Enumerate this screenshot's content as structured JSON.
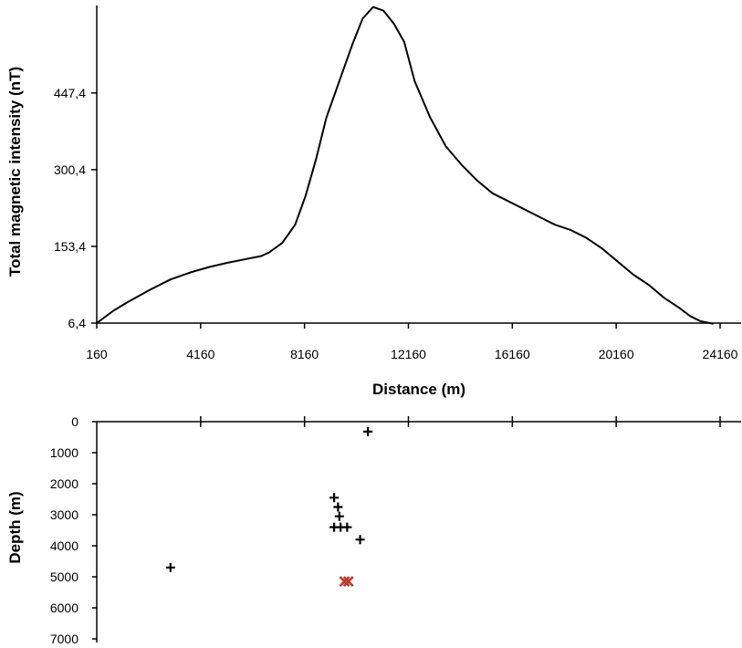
{
  "chart_data": [
    {
      "type": "line",
      "title": "",
      "xlabel": "Distance (m)",
      "ylabel": "Total magnetic intensity (nT)",
      "xlim": [
        160,
        24160
      ],
      "ylim": [
        6.4,
        615
      ],
      "x_ticks": [
        "160",
        "4160",
        "8160",
        "12160",
        "16160",
        "20160",
        "24160"
      ],
      "y_ticks": [
        "6,4",
        "153,4",
        "300,4",
        "447,4"
      ],
      "grid": false,
      "series": [
        {
          "x": [
            160,
            800,
            1300,
            2200,
            3000,
            3800,
            4500,
            5200,
            6000,
            6500,
            6800,
            7300,
            7800,
            8200,
            8600,
            9000,
            9500,
            10000,
            10400,
            10800,
            11200,
            11600,
            12000,
            12400,
            13000,
            13600,
            14200,
            14800,
            15400,
            16000,
            16600,
            17200,
            17800,
            18400,
            19000,
            19600,
            20200,
            20800,
            21400,
            22000,
            22600,
            23000,
            23400,
            23900
          ],
          "values": [
            6.4,
            30,
            45,
            70,
            90,
            104,
            114,
            122,
            130,
            135,
            142,
            160,
            195,
            250,
            320,
            400,
            470,
            540,
            590,
            612,
            605,
            580,
            545,
            470,
            400,
            345,
            310,
            280,
            255,
            240,
            225,
            210,
            195,
            185,
            170,
            150,
            125,
            100,
            80,
            55,
            35,
            20,
            10,
            5
          ]
        }
      ]
    },
    {
      "type": "scatter",
      "title": "",
      "xlabel": "",
      "ylabel": "Depth (m)",
      "xlim": [
        160,
        24160
      ],
      "ylim": [
        0,
        7000
      ],
      "y_inverted": true,
      "y_ticks": [
        "0",
        "1000",
        "2000",
        "3000",
        "4000",
        "5000",
        "6000",
        "7000"
      ],
      "grid": false,
      "series": [
        {
          "marker": "plus",
          "color": "#000000",
          "points": [
            {
              "x": 3000,
              "y": 4700
            },
            {
              "x": 9300,
              "y": 2450
            },
            {
              "x": 9450,
              "y": 2750
            },
            {
              "x": 9500,
              "y": 3050
            },
            {
              "x": 9300,
              "y": 3400
            },
            {
              "x": 9550,
              "y": 3400
            },
            {
              "x": 9800,
              "y": 3400
            },
            {
              "x": 10300,
              "y": 3800
            },
            {
              "x": 10600,
              "y": 320
            }
          ]
        },
        {
          "marker": "cross",
          "color": "#c0392b",
          "points": [
            {
              "x": 9700,
              "y": 5150
            },
            {
              "x": 9850,
              "y": 5150
            }
          ]
        }
      ]
    }
  ]
}
